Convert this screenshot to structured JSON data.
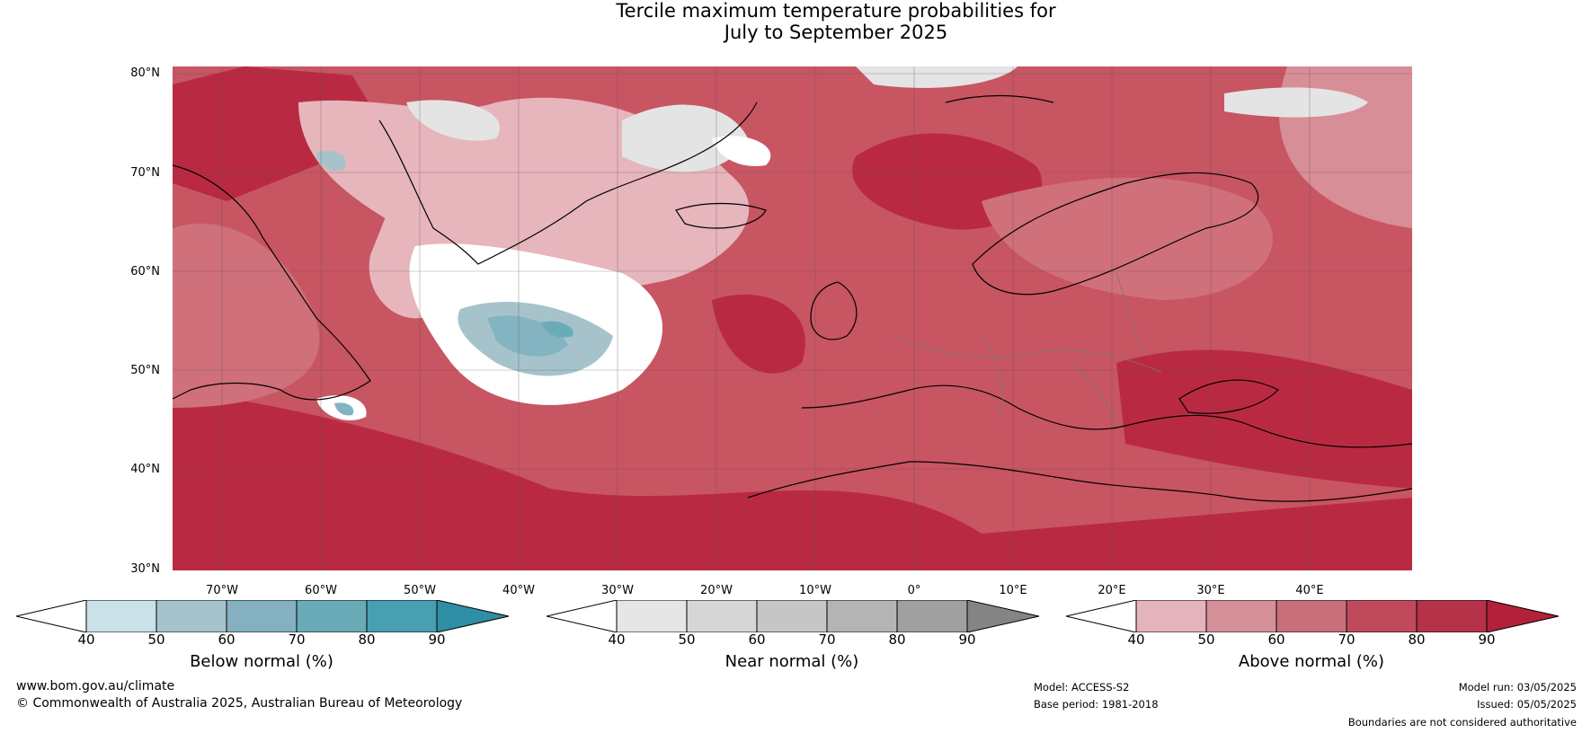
{
  "title_line1": "Tercile maximum temperature probabilities for",
  "title_line2": "July to September 2025",
  "map": {
    "latitude_labels": [
      "80°N",
      "70°N",
      "60°N",
      "50°N",
      "40°N",
      "30°N"
    ],
    "longitude_labels": [
      "70°W",
      "60°W",
      "50°W",
      "40°W",
      "30°W",
      "20°W",
      "10°W",
      "0°",
      "10°E",
      "20°E",
      "30°E",
      "40°E"
    ],
    "extent": {
      "lon_min": -75,
      "lon_max": 50,
      "lat_min": 30,
      "lat_max": 81
    },
    "colors": {
      "above_70_80": "#c85562",
      "above_80_90": "#b92a42",
      "above_60_70": "#cf707b",
      "above_50_60": "#d88e97",
      "above_40_50": "#e6b6bc",
      "near_40_50": "#e4e4e4",
      "below_50_60": "#a6c3cb",
      "below_60_70": "#84b3c1",
      "below_70_80": "#6aabb8",
      "white": "#ffffff"
    }
  },
  "colorbars": [
    {
      "label": "Below normal (%)",
      "ticks": [
        "40",
        "50",
        "60",
        "70",
        "80",
        "90"
      ],
      "colors": [
        "#ffffff",
        "#c9e1e7",
        "#a6c3cb",
        "#84b0c0",
        "#6aabb8",
        "#479fb1",
        "#2e8ea4"
      ]
    },
    {
      "label": "Near normal (%)",
      "ticks": [
        "40",
        "50",
        "60",
        "70",
        "80",
        "90"
      ],
      "colors": [
        "#ffffff",
        "#e6e6e6",
        "#d6d6d6",
        "#c6c6c6",
        "#b4b4b4",
        "#a0a0a0",
        "#848484"
      ]
    },
    {
      "label": "Above normal (%)",
      "ticks": [
        "40",
        "50",
        "60",
        "70",
        "80",
        "90"
      ],
      "colors": [
        "#ffffff",
        "#e3b4bc",
        "#d48f99",
        "#c96f7c",
        "#c04a5c",
        "#b53248",
        "#b2203a"
      ]
    }
  ],
  "footer": {
    "website": "www.bom.gov.au/climate",
    "copyright": "© Commonwealth of Australia 2025, Australian Bureau of Meteorology",
    "model": "Model: ACCESS-S2",
    "base_period": "Base period: 1981-2018",
    "model_run": "Model run: 03/05/2025",
    "issued": "Issued: 05/05/2025",
    "disclaimer": "Boundaries are not considered authoritative"
  }
}
